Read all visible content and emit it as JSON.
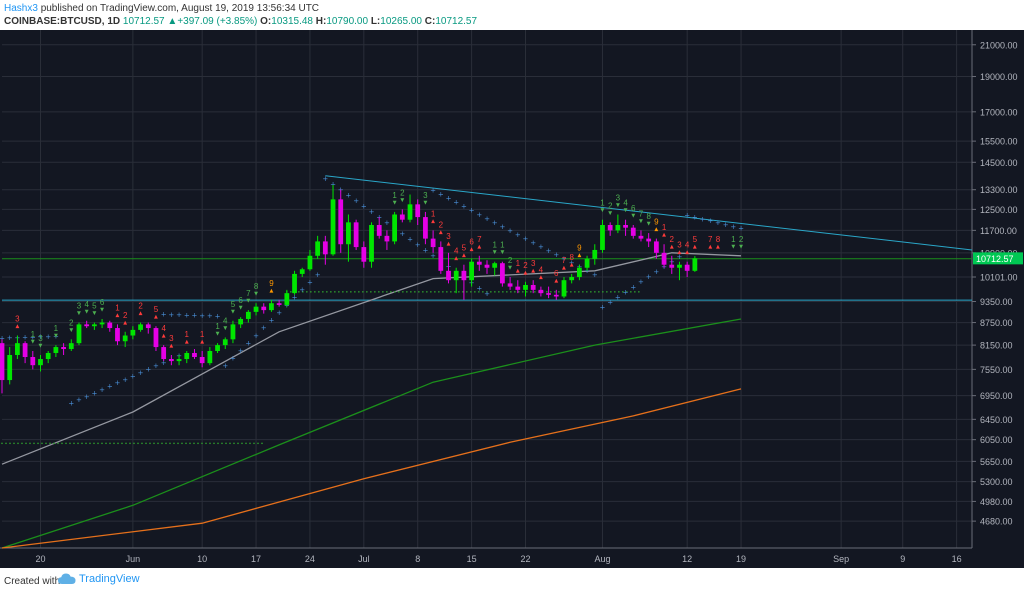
{
  "header": {
    "author": "Hashx3",
    "published_text": "published on TradingView.com, August 19, 2019 13:56:34 UTC",
    "symbol": "COINBASE:BTCUSD, 1D",
    "last": "10712.57",
    "change": "+397.09 (+3.85%)",
    "open_label": "O:",
    "open": "10315.48",
    "high_label": "H:",
    "high": "10790.00",
    "low_label": "L:",
    "low": "10265.00",
    "close_label": "C:",
    "close": "10712.57"
  },
  "footer": {
    "created_with": "Created with",
    "brand": "TradingView"
  },
  "colors": {
    "background": "#131722",
    "grid": "#2a2e39",
    "bull": "#00e600",
    "bear": "#e600e6",
    "ma_short": "#9598a1",
    "ma_mid": "#1b8f1b",
    "ma_long": "#e5701b",
    "psar": "#4a90d9",
    "trendline": "#2aa7c9",
    "support": "#2aa7c9",
    "td_up": "#4caf50",
    "td_down": "#ff3b3b",
    "td_nine": "#ff9800",
    "price_tag": "#00c853",
    "axis_text": "#b2b5be"
  },
  "chart_data": {
    "type": "candlestick",
    "symbol": "COINBASE:BTCUSD",
    "interval": "1D",
    "y_scale": "log",
    "ylim": [
      4300,
      22000
    ],
    "xlim": [
      "2019-05-15",
      "2019-09-18"
    ],
    "y_ticks": [
      "21000.00",
      "19000.00",
      "17000.00",
      "15500.00",
      "14500.00",
      "13300.00",
      "12500.00",
      "11700.00",
      "10900.00",
      "10101.00",
      "9350.00",
      "8750.00",
      "8150.00",
      "7550.00",
      "6950.00",
      "6450.00",
      "6050.00",
      "5650.00",
      "5300.00",
      "4980.00",
      "4680.00"
    ],
    "x_ticks": [
      {
        "date": "2019-05-20",
        "label": "20"
      },
      {
        "date": "2019-06-01",
        "label": "Jun"
      },
      {
        "date": "2019-06-10",
        "label": "10"
      },
      {
        "date": "2019-06-17",
        "label": "17"
      },
      {
        "date": "2019-06-24",
        "label": "24"
      },
      {
        "date": "2019-07-01",
        "label": "Jul"
      },
      {
        "date": "2019-07-08",
        "label": "8"
      },
      {
        "date": "2019-07-15",
        "label": "15"
      },
      {
        "date": "2019-07-22",
        "label": "22"
      },
      {
        "date": "2019-08-01",
        "label": "Aug"
      },
      {
        "date": "2019-08-12",
        "label": "12"
      },
      {
        "date": "2019-08-19",
        "label": "19"
      },
      {
        "date": "2019-09-01",
        "label": "Sep"
      },
      {
        "date": "2019-09-09",
        "label": "9"
      },
      {
        "date": "2019-09-16",
        "label": "16"
      }
    ],
    "candles_start": "2019-05-15",
    "candles": [
      [
        8200,
        8300,
        7000,
        7300
      ],
      [
        7300,
        8100,
        7200,
        7900
      ],
      [
        7900,
        8400,
        7800,
        8200
      ],
      [
        8200,
        8250,
        7700,
        7850
      ],
      [
        7850,
        8000,
        7550,
        7650
      ],
      [
        7650,
        7900,
        7500,
        7800
      ],
      [
        7800,
        8000,
        7700,
        7950
      ],
      [
        7950,
        8150,
        7850,
        8100
      ],
      [
        8100,
        8200,
        7900,
        8050
      ],
      [
        8050,
        8300,
        8000,
        8200
      ],
      [
        8200,
        8750,
        8150,
        8700
      ],
      [
        8700,
        8800,
        8600,
        8650
      ],
      [
        8650,
        8750,
        8550,
        8700
      ],
      [
        8700,
        8850,
        8600,
        8750
      ],
      [
        8750,
        8800,
        8500,
        8600
      ],
      [
        8600,
        8700,
        8150,
        8250
      ],
      [
        8250,
        8500,
        8100,
        8400
      ],
      [
        8400,
        8650,
        8300,
        8550
      ],
      [
        8550,
        8750,
        8500,
        8700
      ],
      [
        8700,
        8750,
        8450,
        8600
      ],
      [
        8600,
        8650,
        8000,
        8100
      ],
      [
        8100,
        8150,
        7750,
        7800
      ],
      [
        7800,
        7900,
        7650,
        7750
      ],
      [
        7750,
        7900,
        7650,
        7800
      ],
      [
        7800,
        8000,
        7700,
        7950
      ],
      [
        7950,
        8050,
        7800,
        7850
      ],
      [
        7850,
        8000,
        7600,
        7700
      ],
      [
        7700,
        8100,
        7650,
        8000
      ],
      [
        8000,
        8200,
        7950,
        8150
      ],
      [
        8150,
        8350,
        8050,
        8300
      ],
      [
        8300,
        8800,
        8200,
        8700
      ],
      [
        8700,
        8900,
        8600,
        8850
      ],
      [
        8850,
        9100,
        8750,
        9050
      ],
      [
        9050,
        9300,
        8950,
        9200
      ],
      [
        9200,
        9300,
        9000,
        9100
      ],
      [
        9100,
        9400,
        9050,
        9300
      ],
      [
        9300,
        9400,
        9200,
        9250
      ],
      [
        9250,
        9700,
        9200,
        9600
      ],
      [
        9600,
        10300,
        9550,
        10200
      ],
      [
        10200,
        10400,
        10100,
        10350
      ],
      [
        10350,
        11000,
        10300,
        10800
      ],
      [
        10800,
        11500,
        10700,
        11300
      ],
      [
        11300,
        11500,
        10500,
        10850
      ],
      [
        10850,
        13500,
        10800,
        12900
      ],
      [
        12900,
        13300,
        10900,
        11200
      ],
      [
        11200,
        12300,
        10600,
        12000
      ],
      [
        12000,
        12100,
        11000,
        11100
      ],
      [
        11100,
        11300,
        10400,
        10600
      ],
      [
        10600,
        12000,
        10400,
        11900
      ],
      [
        11900,
        12200,
        11400,
        11500
      ],
      [
        11500,
        11700,
        11000,
        11300
      ],
      [
        11300,
        12400,
        11200,
        12300
      ],
      [
        12300,
        12500,
        12000,
        12100
      ],
      [
        12100,
        13100,
        12000,
        12700
      ],
      [
        12700,
        12900,
        11900,
        12200
      ],
      [
        12200,
        12400,
        11200,
        11400
      ],
      [
        11400,
        11700,
        10900,
        11100
      ],
      [
        11100,
        11300,
        10200,
        10300
      ],
      [
        10300,
        10900,
        9900,
        10000
      ],
      [
        10000,
        10400,
        9600,
        10300
      ],
      [
        10300,
        10500,
        9400,
        10000
      ],
      [
        10000,
        10700,
        9800,
        10600
      ],
      [
        10600,
        10800,
        10300,
        10500
      ],
      [
        10500,
        10650,
        10200,
        10400
      ],
      [
        10400,
        10600,
        10150,
        10550
      ],
      [
        10550,
        10600,
        9800,
        9900
      ],
      [
        9900,
        10100,
        9700,
        9800
      ],
      [
        9800,
        10000,
        9600,
        9700
      ],
      [
        9700,
        9950,
        9500,
        9850
      ],
      [
        9850,
        10000,
        9600,
        9700
      ],
      [
        9700,
        9800,
        9500,
        9600
      ],
      [
        9600,
        9800,
        9450,
        9550
      ],
      [
        9550,
        9700,
        9400,
        9500
      ],
      [
        9500,
        10100,
        9450,
        10000
      ],
      [
        10000,
        10200,
        9900,
        10100
      ],
      [
        10100,
        10500,
        10000,
        10400
      ],
      [
        10400,
        10800,
        10300,
        10700
      ],
      [
        10700,
        11200,
        10500,
        11000
      ],
      [
        11000,
        12100,
        10900,
        11900
      ],
      [
        11900,
        12000,
        11500,
        11700
      ],
      [
        11700,
        12300,
        11600,
        11900
      ],
      [
        11900,
        12100,
        11500,
        11800
      ],
      [
        11800,
        11900,
        11400,
        11500
      ],
      [
        11500,
        11700,
        11300,
        11400
      ],
      [
        11400,
        11600,
        11100,
        11300
      ],
      [
        11300,
        11400,
        10700,
        10900
      ],
      [
        10900,
        11200,
        10400,
        10500
      ],
      [
        10500,
        10800,
        10200,
        10400
      ],
      [
        10400,
        10600,
        10000,
        10500
      ],
      [
        10500,
        10600,
        10100,
        10300
      ],
      [
        10300,
        10790,
        10265,
        10712.57
      ]
    ],
    "moving_averages": [
      {
        "color": "#9598a1",
        "points": [
          [
            "2019-05-15",
            5600
          ],
          [
            "2019-06-01",
            6600
          ],
          [
            "2019-06-20",
            8500
          ],
          [
            "2019-07-10",
            10050
          ],
          [
            "2019-07-31",
            10300
          ],
          [
            "2019-08-10",
            10900
          ],
          [
            "2019-08-19",
            10800
          ]
        ]
      },
      {
        "color": "#1b8f1b",
        "points": [
          [
            "2019-05-15",
            4300
          ],
          [
            "2019-06-01",
            4920
          ],
          [
            "2019-06-20",
            5950
          ],
          [
            "2019-07-10",
            7250
          ],
          [
            "2019-07-31",
            8150
          ],
          [
            "2019-08-19",
            8850
          ]
        ]
      },
      {
        "color": "#e5701b",
        "points": [
          [
            "2019-05-15",
            4300
          ],
          [
            "2019-06-10",
            4650
          ],
          [
            "2019-07-01",
            5350
          ],
          [
            "2019-07-20",
            6000
          ],
          [
            "2019-08-05",
            6520
          ],
          [
            "2019-08-19",
            7100
          ]
        ]
      }
    ],
    "parabolic_sar": [
      {
        "from": "2019-05-15",
        "to": "2019-05-22",
        "start": 8350,
        "end": 8400
      },
      {
        "from": "2019-05-24",
        "to": "2019-06-07",
        "start": 6800,
        "end": 7900
      },
      {
        "from": "2019-06-05",
        "to": "2019-06-12",
        "start": 9000,
        "end": 8950
      },
      {
        "from": "2019-06-13",
        "to": "2019-06-25",
        "start": 7650,
        "end": 10200
      },
      {
        "from": "2019-06-26",
        "to": "2019-07-17",
        "start": 13800,
        "end": 9600
      },
      {
        "from": "2019-07-10",
        "to": "2019-07-31",
        "start": 13300,
        "end": 10200
      },
      {
        "from": "2019-08-01",
        "to": "2019-08-11",
        "start": 9200,
        "end": 10800
      },
      {
        "from": "2019-08-12",
        "to": "2019-08-19",
        "start": 12300,
        "end": 11800
      }
    ],
    "trend_lines": [
      {
        "color": "#2aa7c9",
        "from": [
          "2019-06-26",
          13900
        ],
        "to": [
          "2019-09-18",
          11000
        ]
      },
      {
        "color": "#2aa7c9",
        "from": [
          "2019-05-15",
          9390
        ],
        "to": [
          "2019-09-18",
          9390
        ]
      },
      {
        "color": "#1b8f1b",
        "from": [
          "2019-05-15",
          10700
        ],
        "to": [
          "2019-09-18",
          10700
        ]
      }
    ],
    "td_labels": [
      {
        "date": "2019-05-17",
        "label": "3",
        "kind": "down"
      },
      {
        "date": "2019-05-19",
        "label": "1",
        "kind": "up"
      },
      {
        "date": "2019-05-20",
        "label": "3",
        "kind": "up"
      },
      {
        "date": "2019-05-22",
        "label": "1",
        "kind": "up"
      },
      {
        "date": "2019-05-24",
        "label": "2",
        "kind": "up"
      },
      {
        "date": "2019-05-25",
        "label": "3",
        "kind": "up"
      },
      {
        "date": "2019-05-26",
        "label": "4",
        "kind": "up"
      },
      {
        "date": "2019-05-27",
        "label": "5",
        "kind": "up"
      },
      {
        "date": "2019-05-28",
        "label": "6",
        "kind": "up"
      },
      {
        "date": "2019-05-30",
        "label": "1",
        "kind": "down"
      },
      {
        "date": "2019-05-31",
        "label": "2",
        "kind": "down"
      },
      {
        "date": "2019-06-02",
        "label": "2",
        "kind": "down"
      },
      {
        "date": "2019-06-04",
        "label": "5",
        "kind": "down"
      },
      {
        "date": "2019-06-05",
        "label": "4",
        "kind": "down"
      },
      {
        "date": "2019-06-06",
        "label": "3",
        "kind": "down"
      },
      {
        "date": "2019-06-08",
        "label": "1",
        "kind": "down"
      },
      {
        "date": "2019-06-10",
        "label": "1",
        "kind": "down"
      },
      {
        "date": "2019-06-12",
        "label": "1",
        "kind": "up"
      },
      {
        "date": "2019-06-13",
        "label": "4",
        "kind": "up"
      },
      {
        "date": "2019-06-14",
        "label": "5",
        "kind": "up"
      },
      {
        "date": "2019-06-15",
        "label": "6",
        "kind": "up"
      },
      {
        "date": "2019-06-16",
        "label": "7",
        "kind": "up"
      },
      {
        "date": "2019-06-17",
        "label": "8",
        "kind": "up"
      },
      {
        "date": "2019-06-19",
        "label": "9",
        "kind": "nine"
      },
      {
        "date": "2019-07-09",
        "label": "3",
        "kind": "up"
      },
      {
        "date": "2019-07-05",
        "label": "1",
        "kind": "up"
      },
      {
        "date": "2019-07-06",
        "label": "2",
        "kind": "up"
      },
      {
        "date": "2019-07-10",
        "label": "1",
        "kind": "down"
      },
      {
        "date": "2019-07-11",
        "label": "2",
        "kind": "down"
      },
      {
        "date": "2019-07-12",
        "label": "3",
        "kind": "down"
      },
      {
        "date": "2019-07-13",
        "label": "4",
        "kind": "down"
      },
      {
        "date": "2019-07-14",
        "label": "5",
        "kind": "down"
      },
      {
        "date": "2019-07-15",
        "label": "6",
        "kind": "down"
      },
      {
        "date": "2019-07-16",
        "label": "7",
        "kind": "down"
      },
      {
        "date": "2019-07-18",
        "label": "1",
        "kind": "up"
      },
      {
        "date": "2019-07-19",
        "label": "1",
        "kind": "up"
      },
      {
        "date": "2019-07-20",
        "label": "2",
        "kind": "up"
      },
      {
        "date": "2019-07-21",
        "label": "1",
        "kind": "down"
      },
      {
        "date": "2019-07-22",
        "label": "2",
        "kind": "down"
      },
      {
        "date": "2019-07-23",
        "label": "3",
        "kind": "down"
      },
      {
        "date": "2019-07-24",
        "label": "4",
        "kind": "down"
      },
      {
        "date": "2019-07-26",
        "label": "6",
        "kind": "down"
      },
      {
        "date": "2019-07-27",
        "label": "7",
        "kind": "down"
      },
      {
        "date": "2019-07-28",
        "label": "8",
        "kind": "down"
      },
      {
        "date": "2019-07-29",
        "label": "9",
        "kind": "nine"
      },
      {
        "date": "2019-08-01",
        "label": "1",
        "kind": "up"
      },
      {
        "date": "2019-08-02",
        "label": "2",
        "kind": "up"
      },
      {
        "date": "2019-08-03",
        "label": "3",
        "kind": "up"
      },
      {
        "date": "2019-08-04",
        "label": "4",
        "kind": "up"
      },
      {
        "date": "2019-08-05",
        "label": "6",
        "kind": "up"
      },
      {
        "date": "2019-08-06",
        "label": "7",
        "kind": "up"
      },
      {
        "date": "2019-08-07",
        "label": "8",
        "kind": "up"
      },
      {
        "date": "2019-08-08",
        "label": "9",
        "kind": "nine"
      },
      {
        "date": "2019-08-09",
        "label": "1",
        "kind": "down"
      },
      {
        "date": "2019-08-10",
        "label": "2",
        "kind": "down"
      },
      {
        "date": "2019-08-11",
        "label": "3",
        "kind": "down"
      },
      {
        "date": "2019-08-12",
        "label": "4",
        "kind": "down"
      },
      {
        "date": "2019-08-13",
        "label": "5",
        "kind": "down"
      },
      {
        "date": "2019-08-15",
        "label": "7",
        "kind": "down"
      },
      {
        "date": "2019-08-16",
        "label": "8",
        "kind": "down"
      },
      {
        "date": "2019-08-18",
        "label": "1",
        "kind": "up"
      },
      {
        "date": "2019-08-19",
        "label": "2",
        "kind": "up"
      }
    ],
    "price_tag": "10712.57"
  }
}
